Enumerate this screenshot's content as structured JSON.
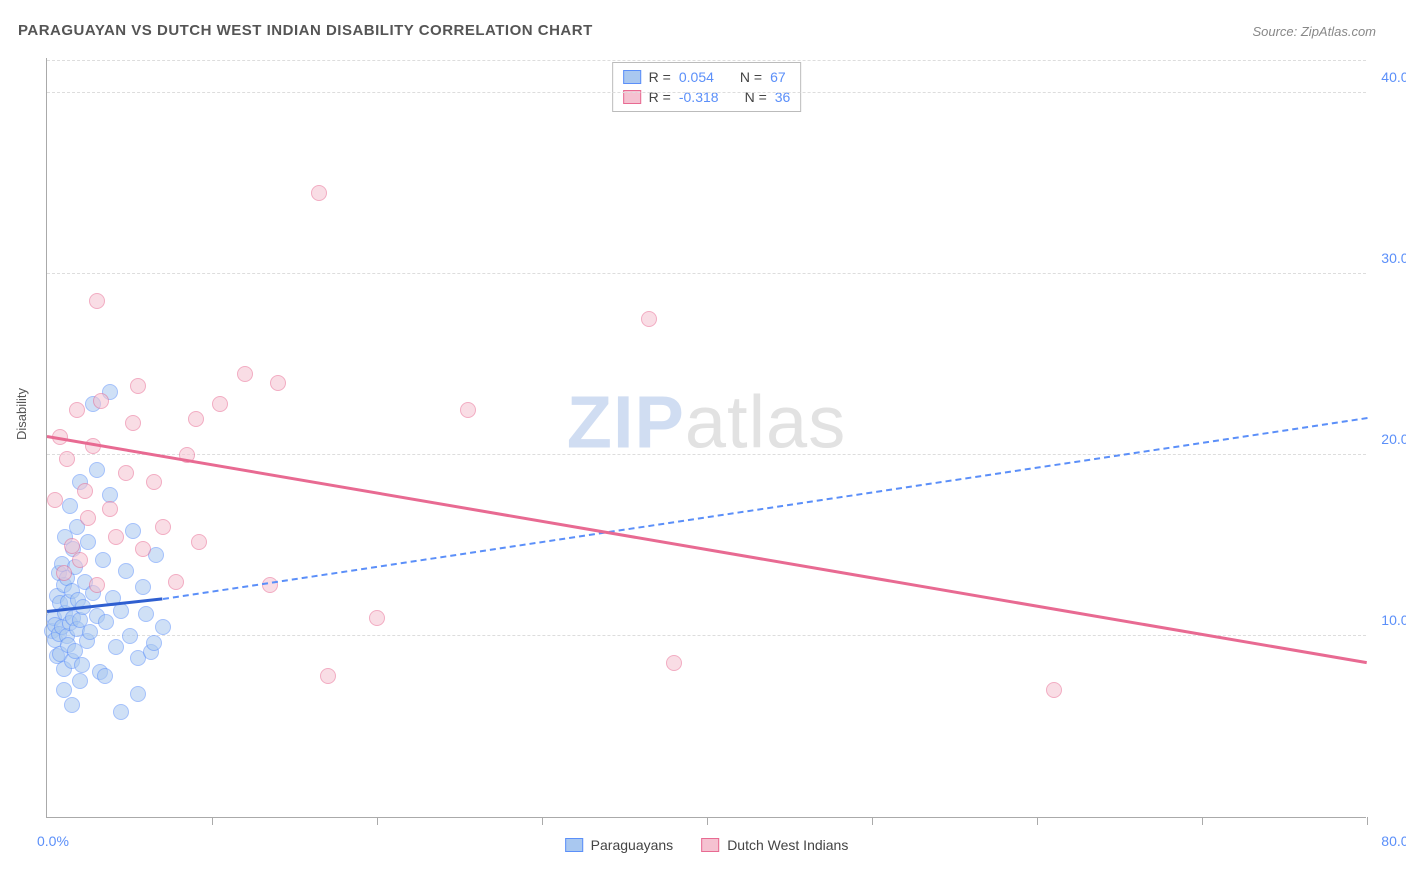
{
  "title": "PARAGUAYAN VS DUTCH WEST INDIAN DISABILITY CORRELATION CHART",
  "source_label": "Source: ZipAtlas.com",
  "ylabel": "Disability",
  "watermark": {
    "part1": "ZIP",
    "part2": "atlas"
  },
  "chart": {
    "type": "scatter",
    "xlim": [
      0,
      80
    ],
    "ylim": [
      0,
      42
    ],
    "x_tick_positions": [
      10,
      20,
      30,
      40,
      50,
      60,
      70,
      80
    ],
    "x_start_label": "0.0%",
    "x_end_label": "80.0%",
    "y_gridlines": [
      10,
      20,
      30,
      40
    ],
    "y_tick_labels": [
      "10.0%",
      "20.0%",
      "30.0%",
      "40.0%"
    ],
    "background_color": "#ffffff",
    "grid_color": "#dddddd",
    "axis_color": "#aaaaaa",
    "label_color": "#5b8ff9",
    "marker_radius": 8,
    "series": [
      {
        "name": "Paraguayans",
        "fill_color": "#a9c8f0",
        "stroke_color": "#5b8ff9",
        "fill_opacity": 0.55,
        "R": "0.054",
        "N": "67",
        "trend": {
          "x1": 0,
          "y1": 11.3,
          "x2": 7,
          "y2": 12.0,
          "solid_color": "#2f5fd0",
          "dash_x1": 7,
          "dash_y1": 12.0,
          "dash_x2": 80,
          "dash_y2": 22.0,
          "dash_color": "#5b8ff9"
        },
        "points": [
          [
            0.3,
            10.3
          ],
          [
            0.4,
            11.0
          ],
          [
            0.5,
            9.8
          ],
          [
            0.5,
            10.6
          ],
          [
            0.6,
            12.2
          ],
          [
            0.6,
            8.9
          ],
          [
            0.7,
            13.5
          ],
          [
            0.7,
            10.1
          ],
          [
            0.8,
            11.8
          ],
          [
            0.8,
            9.0
          ],
          [
            0.9,
            14.0
          ],
          [
            0.9,
            10.5
          ],
          [
            1.0,
            12.8
          ],
          [
            1.0,
            8.2
          ],
          [
            1.1,
            11.3
          ],
          [
            1.1,
            15.5
          ],
          [
            1.2,
            10.0
          ],
          [
            1.2,
            13.2
          ],
          [
            1.3,
            9.5
          ],
          [
            1.3,
            11.9
          ],
          [
            1.4,
            17.2
          ],
          [
            1.4,
            10.7
          ],
          [
            1.5,
            12.5
          ],
          [
            1.5,
            8.6
          ],
          [
            1.6,
            14.8
          ],
          [
            1.6,
            11.0
          ],
          [
            1.7,
            9.2
          ],
          [
            1.7,
            13.8
          ],
          [
            1.8,
            10.4
          ],
          [
            1.8,
            16.0
          ],
          [
            1.9,
            12.0
          ],
          [
            2.0,
            18.5
          ],
          [
            2.0,
            10.9
          ],
          [
            2.1,
            8.4
          ],
          [
            2.2,
            11.6
          ],
          [
            2.3,
            13.0
          ],
          [
            2.4,
            9.7
          ],
          [
            2.5,
            15.2
          ],
          [
            2.6,
            10.2
          ],
          [
            2.8,
            12.4
          ],
          [
            3.0,
            11.1
          ],
          [
            3.0,
            19.2
          ],
          [
            3.2,
            8.0
          ],
          [
            3.4,
            14.2
          ],
          [
            3.6,
            10.8
          ],
          [
            3.8,
            17.8
          ],
          [
            4.0,
            12.1
          ],
          [
            4.2,
            9.4
          ],
          [
            4.5,
            11.4
          ],
          [
            4.8,
            13.6
          ],
          [
            5.0,
            10.0
          ],
          [
            5.2,
            15.8
          ],
          [
            5.5,
            8.8
          ],
          [
            5.8,
            12.7
          ],
          [
            6.0,
            11.2
          ],
          [
            6.3,
            9.1
          ],
          [
            6.6,
            14.5
          ],
          [
            7.0,
            10.5
          ],
          [
            1.0,
            7.0
          ],
          [
            1.5,
            6.2
          ],
          [
            2.0,
            7.5
          ],
          [
            2.8,
            22.8
          ],
          [
            3.5,
            7.8
          ],
          [
            4.5,
            5.8
          ],
          [
            5.5,
            6.8
          ],
          [
            6.5,
            9.6
          ],
          [
            3.8,
            23.5
          ]
        ]
      },
      {
        "name": "Dutch West Indians",
        "fill_color": "#f5c2d1",
        "stroke_color": "#e86a92",
        "fill_opacity": 0.55,
        "R": "-0.318",
        "N": "36",
        "trend": {
          "x1": 0,
          "y1": 21.0,
          "x2": 80,
          "y2": 8.5,
          "solid_color": "#e86a92"
        },
        "points": [
          [
            0.5,
            17.5
          ],
          [
            0.8,
            21.0
          ],
          [
            1.0,
            13.5
          ],
          [
            1.2,
            19.8
          ],
          [
            1.5,
            15.0
          ],
          [
            1.8,
            22.5
          ],
          [
            2.0,
            14.2
          ],
          [
            2.3,
            18.0
          ],
          [
            2.5,
            16.5
          ],
          [
            2.8,
            20.5
          ],
          [
            3.0,
            12.8
          ],
          [
            3.3,
            23.0
          ],
          [
            3.8,
            17.0
          ],
          [
            4.2,
            15.5
          ],
          [
            4.8,
            19.0
          ],
          [
            5.2,
            21.8
          ],
          [
            5.8,
            14.8
          ],
          [
            6.5,
            18.5
          ],
          [
            7.0,
            16.0
          ],
          [
            7.8,
            13.0
          ],
          [
            8.5,
            20.0
          ],
          [
            9.2,
            15.2
          ],
          [
            3.0,
            28.5
          ],
          [
            5.5,
            23.8
          ],
          [
            9.0,
            22.0
          ],
          [
            10.5,
            22.8
          ],
          [
            14.0,
            24.0
          ],
          [
            13.5,
            12.8
          ],
          [
            16.5,
            34.5
          ],
          [
            17.0,
            7.8
          ],
          [
            20.0,
            11.0
          ],
          [
            25.5,
            22.5
          ],
          [
            36.5,
            27.5
          ],
          [
            38.0,
            8.5
          ],
          [
            61.0,
            7.0
          ],
          [
            12.0,
            24.5
          ]
        ]
      }
    ]
  },
  "legend_top": {
    "r_label": "R =",
    "n_label": "N ="
  },
  "legend_bottom": [
    {
      "label": "Paraguayans",
      "fill": "#a9c8f0",
      "stroke": "#5b8ff9"
    },
    {
      "label": "Dutch West Indians",
      "fill": "#f5c2d1",
      "stroke": "#e86a92"
    }
  ]
}
